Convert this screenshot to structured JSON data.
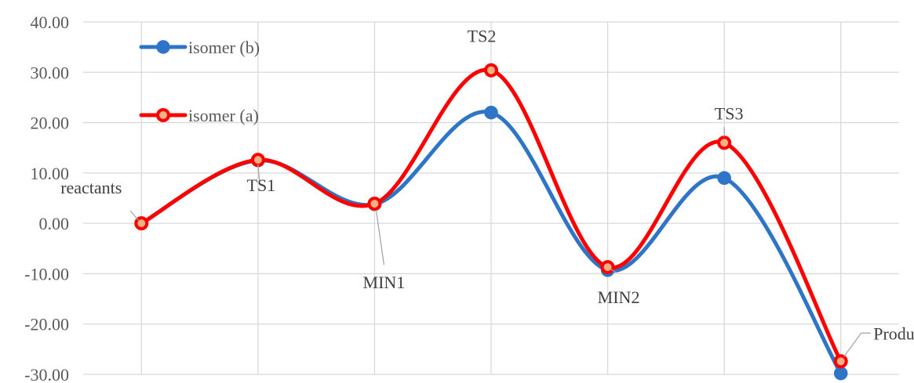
{
  "chart_data": {
    "type": "line",
    "smooth": true,
    "categories": [
      "reactants",
      "TS1",
      "MIN1",
      "TS2",
      "MIN2",
      "TS3",
      "Products"
    ],
    "point_labels": [
      "reactants",
      "TS1",
      "MIN1",
      "TS2",
      "MIN2",
      "TS3",
      "Products"
    ],
    "series": [
      {
        "name": "isomer  (b)",
        "color": "#2E75C8",
        "marker_fill": "#2E75C8",
        "values": [
          0.0,
          12.5,
          3.8,
          22.0,
          -9.3,
          9.0,
          -29.8
        ]
      },
      {
        "name": "isomer  (a)",
        "color": "#FF0000",
        "marker_fill": "#F4B183",
        "values": [
          0.0,
          12.6,
          3.9,
          30.4,
          -8.7,
          16.0,
          -27.4
        ]
      }
    ],
    "y_ticks": [
      "40.00",
      "30.00",
      "20.00",
      "10.00",
      "0.00",
      "-10.00",
      "-20.00",
      "-30.00"
    ],
    "ylim": [
      -30,
      40
    ],
    "y_step": 10,
    "grid": true,
    "legend": {
      "placement": "top-left",
      "order": [
        "isomer  (b)",
        "isomer  (a)"
      ]
    }
  }
}
